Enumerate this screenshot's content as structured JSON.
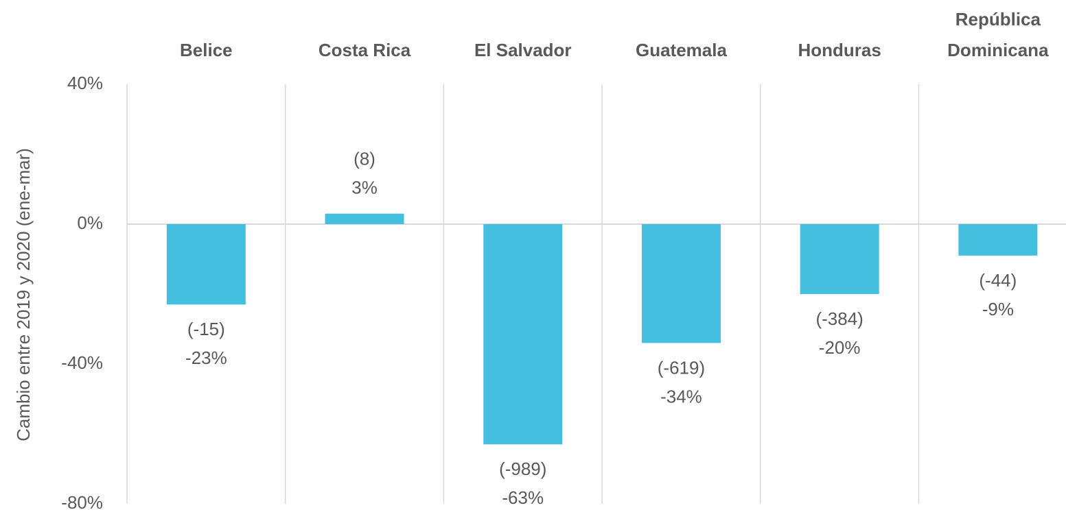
{
  "chart_data": {
    "type": "bar",
    "y_axis_label": "Cambio entre 2019 y 2020 (ene-mar)",
    "categories": [
      "Belice",
      "Costa Rica",
      "El Salvador",
      "Guatemala",
      "Honduras",
      "República Dominicana"
    ],
    "values": [
      -23,
      3,
      -63,
      -34,
      -20,
      -9
    ],
    "value_labels": [
      "-23%",
      "3%",
      "-63%",
      "-34%",
      "-20%",
      "-9%"
    ],
    "count_labels": [
      "(-15)",
      "(8)",
      "(-989)",
      "(-619)",
      "(-384)",
      "(-44)"
    ],
    "color": "#45bfe0",
    "ylim": [
      -80,
      40
    ],
    "yticks": [
      {
        "value": -80,
        "label": "-80%"
      },
      {
        "value": -40,
        "label": "-40%"
      },
      {
        "value": 0,
        "label": "0%"
      },
      {
        "value": 40,
        "label": "40%"
      }
    ],
    "grid": true
  }
}
